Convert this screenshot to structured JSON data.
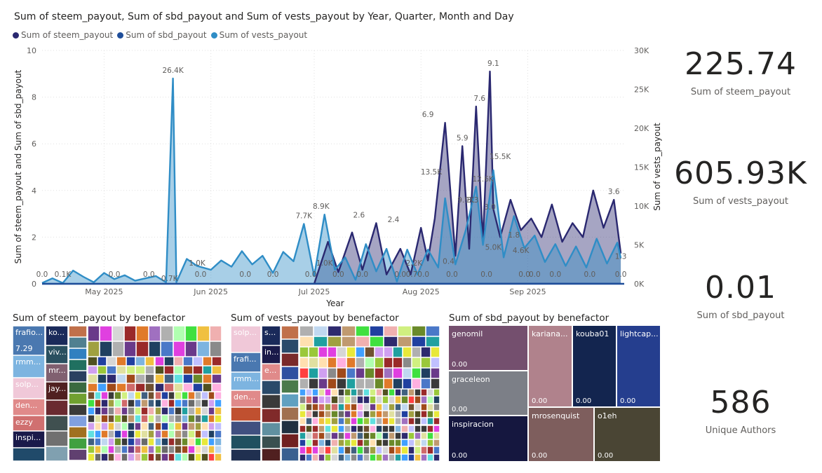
{
  "main_chart": {
    "title": "Sum of steem_payout, Sum of sbd_payout and Sum of vests_payout by Year, Quarter, Month and Day",
    "legend": [
      {
        "name": "Sum of steem_payout",
        "color": "#2a2870"
      },
      {
        "name": "Sum of sbd_payout",
        "color": "#1f4e9a"
      },
      {
        "name": "Sum of vests_payout",
        "color": "#2f8dc6"
      }
    ],
    "y_left_label": "Sum of steem_payout and Sum of sbd_payout",
    "y_right_label": "Sum of vests_payout",
    "x_label": "Year",
    "y_left_ticks": [
      "0",
      "2",
      "4",
      "6",
      "8",
      "10"
    ],
    "y_right_ticks": [
      "0K",
      "5K",
      "10K",
      "15K",
      "20K",
      "25K",
      "30K"
    ],
    "x_ticks": [
      "May 2025",
      "Jun 2025",
      "Jul 2025",
      "Aug 2025",
      "Sep 2025"
    ]
  },
  "chart_data": {
    "type": "line",
    "title": "Sum of steem_payout, Sum of sbd_payout and Sum of vests_payout by Year, Quarter, Month and Day",
    "xlabel": "Year",
    "ylabel": "Sum of steem_payout and Sum of sbd_payout",
    "ylabel_right": "Sum of vests_payout",
    "ylim": [
      0,
      10
    ],
    "ylim_right": [
      0,
      30000
    ],
    "x_range": [
      "2025-04-13",
      "2025-09-29"
    ],
    "series": [
      {
        "name": "Sum of steem_payout",
        "axis": "left",
        "x": [
          "2025-07-01",
          "2025-07-05",
          "2025-07-08",
          "2025-07-12",
          "2025-07-15",
          "2025-07-19",
          "2025-07-22",
          "2025-07-26",
          "2025-07-29",
          "2025-08-01",
          "2025-08-03",
          "2025-08-05",
          "2025-08-08",
          "2025-08-11",
          "2025-08-13",
          "2025-08-15",
          "2025-08-17",
          "2025-08-19",
          "2025-08-21",
          "2025-08-22",
          "2025-08-24",
          "2025-08-27",
          "2025-08-30",
          "2025-09-02",
          "2025-09-05",
          "2025-09-08",
          "2025-09-11",
          "2025-09-14",
          "2025-09-17",
          "2025-09-20",
          "2025-09-23",
          "2025-09-26",
          "2025-09-28"
        ],
        "values": [
          0,
          1.8,
          0.5,
          2.2,
          0.6,
          2.6,
          0.4,
          1.5,
          0.4,
          2.4,
          1.0,
          2.8,
          6.9,
          1.2,
          5.9,
          1.5,
          7.6,
          1.8,
          9.1,
          3.2,
          2.0,
          3.6,
          2.3,
          2.8,
          2.0,
          3.4,
          1.8,
          2.6,
          2.0,
          4.0,
          2.4,
          3.6,
          1.3
        ]
      },
      {
        "name": "Sum of sbd_payout",
        "axis": "left",
        "x": [
          "2025-04-13",
          "2025-09-28"
        ],
        "values": [
          0,
          0.01
        ]
      },
      {
        "name": "Sum of vests_payout",
        "axis": "right",
        "x": [
          "2025-04-13",
          "2025-04-16",
          "2025-04-19",
          "2025-04-22",
          "2025-04-25",
          "2025-04-28",
          "2025-05-01",
          "2025-05-04",
          "2025-05-07",
          "2025-05-10",
          "2025-05-13",
          "2025-05-16",
          "2025-05-19",
          "2025-05-21",
          "2025-05-22",
          "2025-05-25",
          "2025-05-28",
          "2025-06-01",
          "2025-06-04",
          "2025-06-07",
          "2025-06-10",
          "2025-06-13",
          "2025-06-16",
          "2025-06-19",
          "2025-06-22",
          "2025-06-25",
          "2025-06-28",
          "2025-07-01",
          "2025-07-04",
          "2025-07-07",
          "2025-07-10",
          "2025-07-13",
          "2025-07-16",
          "2025-07-19",
          "2025-07-22",
          "2025-07-25",
          "2025-07-28",
          "2025-07-31",
          "2025-08-03",
          "2025-08-06",
          "2025-08-08",
          "2025-08-11",
          "2025-08-14",
          "2025-08-17",
          "2025-08-19",
          "2025-08-22",
          "2025-08-25",
          "2025-08-28",
          "2025-08-31",
          "2025-09-03",
          "2025-09-06",
          "2025-09-09",
          "2025-09-12",
          "2025-09-15",
          "2025-09-18",
          "2025-09-21",
          "2025-09-24",
          "2025-09-27",
          "2025-09-28"
        ],
        "values": [
          100,
          700,
          100,
          1700,
          900,
          200,
          1400,
          600,
          1100,
          400,
          700,
          1000,
          200,
          26400,
          200,
          3200,
          2300,
          1800,
          3000,
          2200,
          4200,
          2500,
          3600,
          1400,
          4100,
          2900,
          7700,
          1000,
          8900,
          1800,
          3400,
          500,
          5100,
          1600,
          4500,
          300,
          4400,
          1200,
          4400,
          2100,
          11000,
          2500,
          6900,
          12500,
          5000,
          14600,
          3400,
          8700,
          4600,
          6200,
          2800,
          5100,
          2300,
          4800,
          2100,
          5800,
          2600,
          5300,
          3300
        ]
      }
    ],
    "data_labels": [
      {
        "x": "2025-04-13",
        "text": "0.0"
      },
      {
        "x": "2025-04-19",
        "text": "0.1K"
      },
      {
        "x": "2025-05-04",
        "text": "0.0"
      },
      {
        "x": "2025-05-14",
        "text": "0.0"
      },
      {
        "x": "2025-05-20",
        "text": "0.7K"
      },
      {
        "x": "2025-05-21",
        "text": "26.4K"
      },
      {
        "x": "2025-05-28",
        "text": "1.0K"
      },
      {
        "x": "2025-05-29",
        "text": "0.0"
      },
      {
        "x": "2025-06-11",
        "text": "0.0"
      },
      {
        "x": "2025-06-19",
        "text": "0.0"
      },
      {
        "x": "2025-06-28",
        "text": "7.7K"
      },
      {
        "x": "2025-06-30",
        "text": "0.0"
      },
      {
        "x": "2025-07-03",
        "text": "8.9K"
      },
      {
        "x": "2025-07-04",
        "text": "1.0K"
      },
      {
        "x": "2025-07-08",
        "text": "0.0"
      },
      {
        "x": "2025-07-14",
        "text": "2.6"
      },
      {
        "x": "2025-07-15",
        "text": "0.0"
      },
      {
        "x": "2025-07-24",
        "text": "2.4"
      },
      {
        "x": "2025-07-26",
        "text": "0.0"
      },
      {
        "x": "2025-07-30",
        "text": "2.2K"
      },
      {
        "x": "2025-07-31",
        "text": "0.70.0"
      },
      {
        "x": "2025-08-03",
        "text": "6.9"
      },
      {
        "x": "2025-08-04",
        "text": "13.5K"
      },
      {
        "x": "2025-08-09",
        "text": "0.4"
      },
      {
        "x": "2025-08-10",
        "text": "0.0"
      },
      {
        "x": "2025-08-13",
        "text": "5.9"
      },
      {
        "x": "2025-08-14",
        "text": "9.9K"
      },
      {
        "x": "2025-08-16",
        "text": "3.3"
      },
      {
        "x": "2025-08-18",
        "text": "7.6"
      },
      {
        "x": "2025-08-19",
        "text": "12.6K"
      },
      {
        "x": "2025-08-20",
        "text": "0.0"
      },
      {
        "x": "2025-08-21",
        "text": "3.0"
      },
      {
        "x": "2025-08-22",
        "text": "5.0K"
      },
      {
        "x": "2025-08-22",
        "text": "9.1"
      },
      {
        "x": "2025-08-24",
        "text": "15.5K"
      },
      {
        "x": "2025-08-28",
        "text": "1.8"
      },
      {
        "x": "2025-08-30",
        "text": "4.6K"
      },
      {
        "x": "2025-08-31",
        "text": "0.0"
      },
      {
        "x": "2025-09-03",
        "text": "0.0"
      },
      {
        "x": "2025-09-09",
        "text": "0.0"
      },
      {
        "x": "2025-09-19",
        "text": "0.0"
      },
      {
        "x": "2025-09-26",
        "text": "3.6"
      },
      {
        "x": "2025-09-28",
        "text": "1.3"
      },
      {
        "x": "2025-09-28",
        "text": "0.0"
      }
    ],
    "grid": true,
    "legend_position": "top-left"
  },
  "kpis": [
    {
      "value": "225.74",
      "label": "Sum of steem_payout"
    },
    {
      "value": "605.93K",
      "label": "Sum of vests_payout"
    },
    {
      "value": "0.01",
      "label": "Sum of sbd_payout"
    },
    {
      "value": "586",
      "label": "Unique Authors"
    }
  ],
  "treemap_steem": {
    "title": "Sum of steem_payout by benefactor",
    "labels": [
      "frafio...",
      "7.29",
      "rmm...",
      "solp...",
      "den...",
      "ezzy",
      "inspi...",
      "ko...",
      "viv...",
      "mr...",
      "jay..."
    ]
  },
  "treemap_vests": {
    "title": "Sum of vests_payout by benefactor",
    "labels": [
      "solp...",
      "frafi...",
      "rmm...",
      "den...",
      "s...",
      "in...",
      "e..."
    ]
  },
  "treemap_sbd": {
    "title": "Sum of sbd_payout by benefactor",
    "tiles": [
      {
        "name": "genomil",
        "value": "0.00",
        "color": "#744f6e"
      },
      {
        "name": "graceleon",
        "value": "0.00",
        "color": "#7c7f87"
      },
      {
        "name": "inspiracion",
        "value": "0.00",
        "color": "#15173f"
      },
      {
        "name": "kariana...",
        "value": "0.00",
        "color": "#b0828c"
      },
      {
        "name": "kouba01",
        "value": "0.00",
        "color": "#13254f"
      },
      {
        "name": "lightcap...",
        "value": "0.00",
        "color": "#253e8e"
      },
      {
        "name": "mrosenquist",
        "value": "0.00",
        "color": "#7e5e5d"
      },
      {
        "name": "o1eh",
        "value": "0.00",
        "color": "#4a4534"
      }
    ]
  }
}
